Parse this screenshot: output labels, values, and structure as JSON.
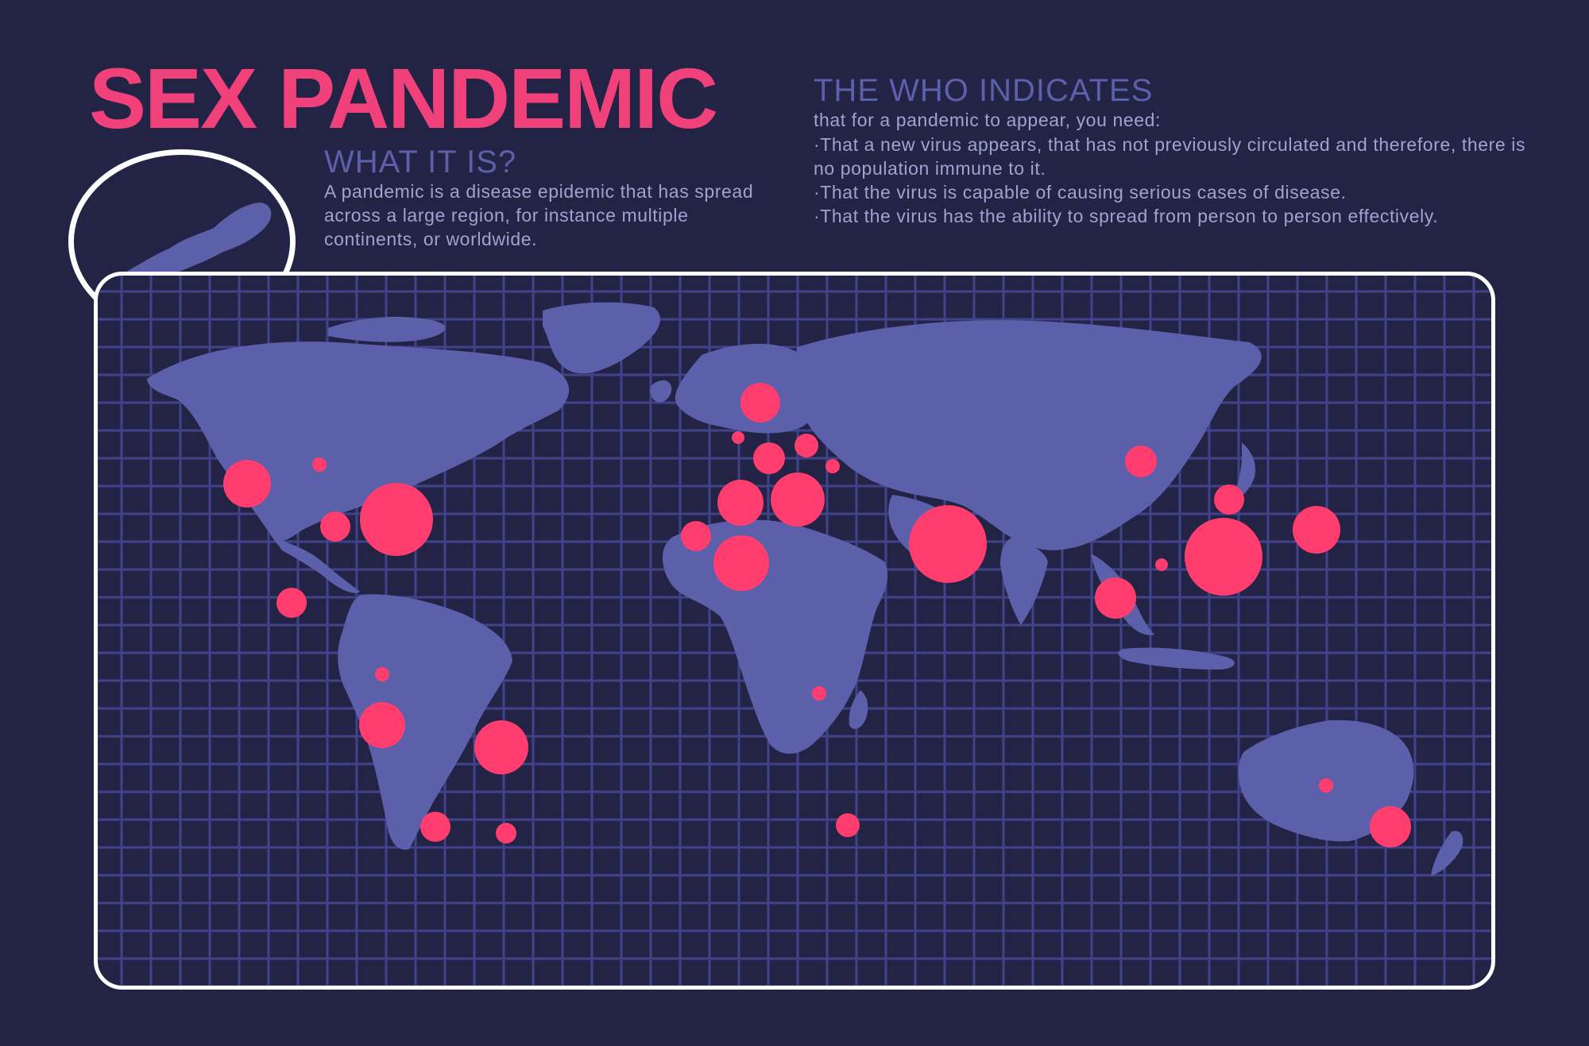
{
  "header": {
    "title": "SEX PANDEMIC"
  },
  "what_it_is": {
    "heading": "WHAT IT IS?",
    "body": "A pandemic is a disease epidemic that has spread across a large region, for instance multiple continents, or worldwide."
  },
  "who": {
    "heading": "THE WHO INDICATES",
    "intro": "that for a pandemic to appear, you need:",
    "items": [
      "·That a new virus appears, that has not previously circulated and therefore, there is no population immune to it.",
      "·That the virus is capable of causing serious cases of disease.",
      "·That the virus has the ability to spread from person to person effectively."
    ]
  },
  "colors": {
    "background": "#232345",
    "land": "#5C5FAA",
    "grid": "#40438A",
    "hotspot": "#FF3D6E",
    "title": "#F0417A",
    "frame": "#FFFFFF"
  },
  "icons": {
    "lens": "virus-bacillus-icon"
  }
}
